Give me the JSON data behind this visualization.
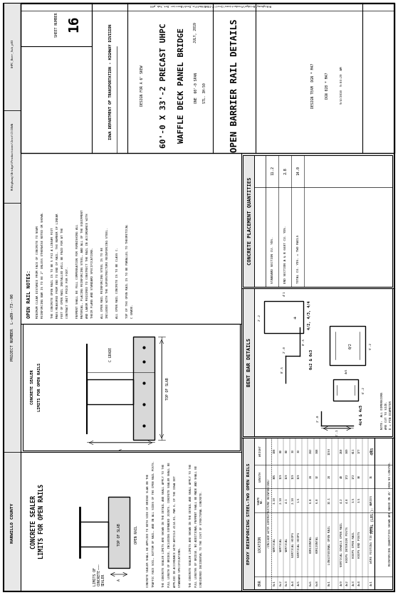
{
  "title": "OPEN BARRIER RAIL DETAILS",
  "project_title1": "60'-0 X 33'-2 PRECAST UHPC",
  "project_title2": "WAFFLE DECK PANEL BRIDGE",
  "design_note": "DESIGN FOR A 6' SKEW",
  "span_note1": "ONE  60'-0 SPAN",
  "span_note2": "STL. 3H-50",
  "date": "JULY, 2019",
  "sheet_number": "16",
  "agency": "IOWA DEPARTMENT OF TRANSPORTATION - HIGHWAY DIVISION",
  "project_number": "PROJECT NUMBER  L-a89--73--90",
  "county": "HARWILLO COUNTY",
  "sheet_title": "EPOXY REINFORCING STEEL-TWO OPEN RAILS",
  "bent_bar_title": "BENT BAR DETAILS",
  "concrete_placement_title": "CONCRETE PLACEMENT QUANTITIES",
  "open_rail_notes_title": "OPEN RAIL NOTES:",
  "concrete_sealer_title": "CONCRETE SEALER\nLIMITS FOR OPEN RAILS",
  "file_path": "R\\Highway\\Bridge\\Productions\\Inst\\1\\IOWA\\Waffle_Deck\\Barrier_Det_Sub_p03",
  "file_ref": "UHPC_Barr_Sub_p03",
  "design_team": "DESIGN TEAM  DGN * M47",
  "date_stamp": "9/4/2010  9:03:29  AM",
  "bg_color": "#ffffff",
  "line_color": "#000000",
  "gray_fill": "#cccccc",
  "light_gray": "#e8e8e8"
}
